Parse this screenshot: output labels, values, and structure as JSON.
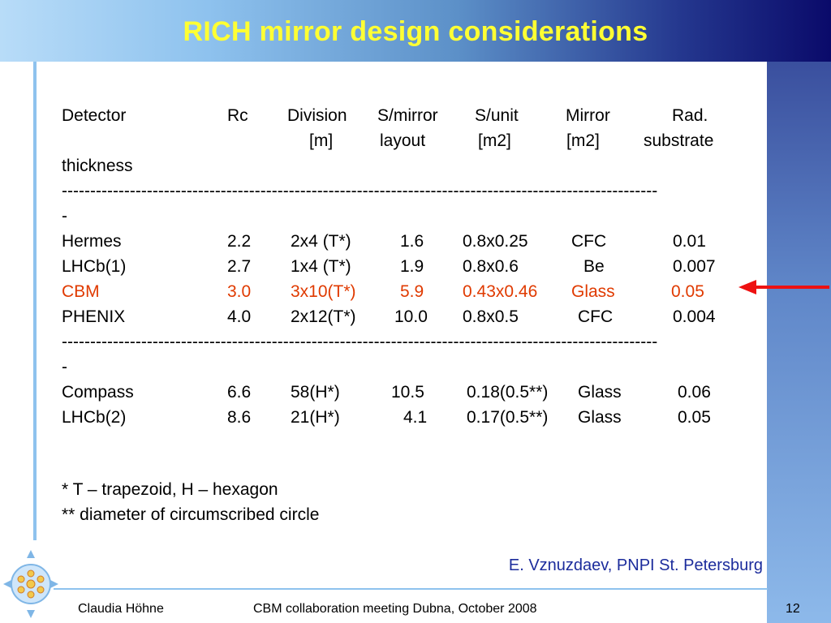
{
  "title": "RICH mirror design considerations",
  "header": {
    "line1": [
      "Detector",
      "Rc",
      "Division",
      "S/mirror",
      "S/unit",
      "Mirror",
      "Rad."
    ],
    "line2": [
      "[m]",
      "layout",
      "[m2]",
      "[m2]",
      "substrate"
    ],
    "line3": "thickness"
  },
  "separator": "---------------------------------------------------------------------------------------------------------",
  "separator_tail": "-",
  "group1": [
    {
      "detector": "Hermes",
      "rc": "2.2",
      "division": "2x4 (T*)",
      "smirror": "1.6",
      "sunit": "0.8x0.25",
      "substrate": "CFC",
      "thickness": "0.01"
    },
    {
      "detector": "LHCb(1)",
      "rc": "2.7",
      "division": "1x4 (T*)",
      "smirror": "1.9",
      "sunit": "0.8x0.6",
      "substrate": "Be",
      "thickness": "0.007"
    },
    {
      "detector": "CBM",
      "rc": "3.0",
      "division": "3x10(T*)",
      "smirror": "5.9",
      "sunit": "0.43x0.46",
      "substrate": "Glass",
      "thickness": "0.05"
    },
    {
      "detector": "PHENIX",
      "rc": "4.0",
      "division": "2x12(T*)",
      "smirror": "10.0",
      "sunit": "0.8x0.5",
      "substrate": "CFC",
      "thickness": "0.004"
    }
  ],
  "group2": [
    {
      "detector": "Compass",
      "rc": "6.6",
      "division": "58(H*)",
      "smirror": "10.5",
      "sunit": "0.18(0.5**)",
      "substrate": "Glass",
      "thickness": "0.06"
    },
    {
      "detector": "LHCb(2)",
      "rc": "8.6",
      "division": "21(H*)",
      "smirror": "4.1",
      "sunit": "0.17(0.5**)",
      "substrate": "Glass",
      "thickness": "0.05"
    }
  ],
  "notes": [
    "*   T – trapezoid, H – hexagon",
    "** diameter of circumscribed circle"
  ],
  "credit": "E. Vznuzdaev, PNPI St. Petersburg",
  "footer": {
    "author": "Claudia Höhne",
    "event": "CBM collaboration meeting Dubna, October 2008",
    "page": "12"
  },
  "colors": {
    "title": "#ffff33",
    "highlight": "#e03a00",
    "arrow": "#ee1111",
    "credit": "#1c2c9c"
  }
}
